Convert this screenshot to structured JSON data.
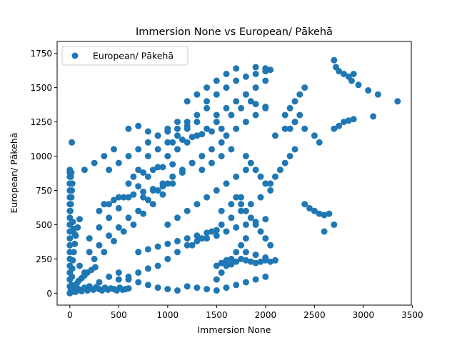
{
  "chart_data": {
    "type": "scatter",
    "title": "Immersion None vs European/ Pākehā",
    "xlabel": "Immersion None",
    "ylabel": "European/ Pākehā",
    "xlim": [
      -130,
      3490
    ],
    "ylim": [
      -87,
      1837
    ],
    "xticks": [
      0,
      500,
      1000,
      1500,
      2000,
      2500,
      3000,
      3500
    ],
    "yticks": [
      0,
      250,
      500,
      750,
      1000,
      1250,
      1500,
      1750
    ],
    "grid": false,
    "legend": {
      "placement": "top-left",
      "entries": [
        "European/ Pākehā"
      ]
    },
    "series": [
      {
        "name": "European/ Pākehā",
        "color": "#1f77b4",
        "marker": "circle",
        "x": [
          0,
          0,
          0,
          0,
          0,
          0,
          0,
          0,
          0,
          0,
          0,
          0,
          0,
          0,
          0,
          0,
          0,
          0,
          0,
          0,
          10,
          15,
          20,
          25,
          30,
          40,
          50,
          60,
          80,
          100,
          20,
          30,
          50,
          70,
          90,
          120,
          150,
          180,
          220,
          260,
          5,
          10,
          15,
          20,
          25,
          30,
          40,
          50,
          10,
          15,
          30,
          60,
          90,
          120,
          150,
          180,
          210,
          240,
          270,
          300,
          330,
          360,
          390,
          420,
          450,
          480,
          510,
          540,
          570,
          600,
          100,
          200,
          300,
          400,
          500,
          600,
          700,
          800,
          900,
          1000,
          150,
          250,
          350,
          450,
          550,
          650,
          750,
          850,
          950,
          1050,
          1150,
          1250,
          1350,
          200,
          300,
          400,
          500,
          600,
          700,
          800,
          900,
          1000,
          1100,
          1200,
          1300,
          1400,
          1500,
          300,
          400,
          500,
          600,
          700,
          800,
          900,
          1000,
          1100,
          1200,
          1300,
          400,
          500,
          600,
          700,
          800,
          900,
          1000,
          1100,
          1200,
          600,
          700,
          800,
          900,
          1000,
          1100,
          1200,
          1300,
          1400,
          750,
          850,
          950,
          1050,
          1150,
          1250,
          1350,
          1450,
          1550,
          1000,
          1100,
          1200,
          1300,
          1400,
          1500,
          1600,
          1700,
          1800,
          1250,
          1350,
          1450,
          1550,
          1650,
          1750,
          1850,
          1950,
          1400,
          1500,
          1600,
          1700,
          1800,
          1900,
          2000,
          1500,
          1600,
          1700,
          1800,
          1900,
          2000,
          1600,
          1700,
          1800,
          1900,
          2000,
          1800,
          1850,
          1900,
          1950,
          2000,
          2050,
          1700,
          1750,
          1800,
          1850,
          1900,
          1950,
          2000,
          2050,
          1500,
          1550,
          1600,
          1650,
          1700,
          1750,
          1800,
          1850,
          1900,
          1950,
          2000,
          2050,
          2050,
          2100,
          2150,
          2200,
          2250,
          2300,
          2100,
          2200,
          2300,
          2400,
          2500,
          2550,
          2400,
          2450,
          2500,
          2550,
          2600,
          2200,
          2250,
          2300,
          2350,
          2400,
          2250,
          2300,
          2350,
          2700,
          2720,
          2750,
          2800,
          2850,
          2880,
          2900,
          2950,
          3050,
          3150,
          3350,
          2700,
          2750,
          2800,
          2850,
          2900,
          3100,
          2650,
          2700,
          2600,
          1200,
          1300,
          1400,
          1500,
          1600,
          1700,
          1800,
          1900,
          2000,
          1500,
          1550,
          1600,
          1650,
          1700,
          1750,
          1800,
          1800,
          1900,
          2000,
          2100,
          500,
          600,
          700,
          800,
          900,
          1000,
          1100,
          1200,
          1300,
          1400,
          1500,
          1600,
          1700,
          1800,
          1900,
          2000,
          700,
          800,
          900,
          1000,
          1100,
          1200,
          1300,
          1400,
          1500,
          200,
          300,
          400,
          500,
          600,
          700,
          800,
          900,
          1000,
          1100,
          350,
          450,
          550,
          650,
          750,
          850,
          950,
          650,
          750,
          850,
          950,
          1050,
          1050,
          1150,
          1250,
          1350,
          1450,
          1550,
          1350,
          1450,
          1550,
          1650,
          1650,
          1750,
          1850,
          1800,
          1900,
          2000,
          20,
          150,
          250,
          350,
          450,
          1200,
          1300,
          1400,
          1500,
          1600,
          1700,
          1900,
          2000,
          2050,
          1550,
          1650,
          1750
        ],
        "y": [
          0,
          50,
          100,
          150,
          200,
          250,
          300,
          350,
          400,
          450,
          500,
          550,
          600,
          650,
          700,
          750,
          800,
          850,
          880,
          900,
          20,
          60,
          120,
          180,
          240,
          300,
          360,
          420,
          480,
          540,
          10,
          30,
          50,
          70,
          90,
          110,
          130,
          150,
          170,
          190,
          600,
          650,
          700,
          750,
          800,
          520,
          470,
          430,
          850,
          880,
          20,
          10,
          30,
          15,
          40,
          20,
          35,
          25,
          45,
          30,
          20,
          40,
          25,
          35,
          30,
          20,
          40,
          25,
          30,
          35,
          200,
          300,
          350,
          420,
          480,
          550,
          600,
          680,
          750,
          800,
          150,
          250,
          300,
          380,
          450,
          500,
          580,
          650,
          720,
          800,
          880,
          950,
          1000,
          400,
          480,
          550,
          620,
          700,
          780,
          850,
          920,
          1000,
          1050,
          1100,
          1150,
          1200,
          1250,
          600,
          650,
          700,
          800,
          900,
          1000,
          1050,
          1100,
          1150,
          1200,
          1250,
          900,
          950,
          1000,
          1050,
          1100,
          1150,
          1180,
          1200,
          1220,
          1200,
          1220,
          1180,
          1150,
          1200,
          1250,
          1250,
          1300,
          1350,
          700,
          750,
          800,
          850,
          900,
          950,
          1000,
          1050,
          1100,
          500,
          550,
          600,
          650,
          700,
          750,
          800,
          850,
          900,
          350,
          400,
          450,
          500,
          550,
          600,
          650,
          700,
          1400,
          1450,
          1500,
          1550,
          1580,
          1600,
          1620,
          1300,
          1350,
          1400,
          1450,
          1380,
          1360,
          1150,
          1200,
          1250,
          1300,
          1350,
          1000,
          950,
          900,
          850,
          800,
          750,
          700,
          650,
          600,
          550,
          500,
          450,
          400,
          350,
          200,
          220,
          240,
          210,
          230,
          250,
          240,
          230,
          220,
          230,
          240,
          230,
          800,
          850,
          900,
          950,
          1000,
          1050,
          1150,
          1200,
          1250,
          1200,
          1150,
          1100,
          650,
          620,
          600,
          580,
          570,
          1300,
          1350,
          1400,
          1450,
          1500,
          1200,
          1250,
          1300,
          1700,
          1650,
          1620,
          1600,
          1580,
          1550,
          1600,
          1520,
          1480,
          1450,
          1400,
          1200,
          1220,
          1250,
          1260,
          1270,
          1290,
          580,
          500,
          450,
          50,
          40,
          30,
          20,
          40,
          60,
          80,
          100,
          120,
          100,
          150,
          200,
          250,
          300,
          350,
          400,
          300,
          280,
          260,
          240,
          100,
          120,
          150,
          180,
          200,
          250,
          300,
          350,
          380,
          400,
          420,
          450,
          480,
          500,
          520,
          540,
          300,
          320,
          340,
          360,
          380,
          400,
          420,
          440,
          460,
          50,
          80,
          120,
          150,
          100,
          80,
          60,
          40,
          30,
          20,
          650,
          680,
          700,
          720,
          740,
          760,
          780,
          850,
          880,
          900,
          920,
          940,
          1100,
          1120,
          1140,
          1160,
          1180,
          1200,
          900,
          950,
          1000,
          1050,
          1300,
          1350,
          1400,
          1450,
          1500,
          1550,
          1100,
          900,
          950,
          1000,
          1050,
          1400,
          1450,
          1500,
          1550,
          1600,
          1640,
          1650,
          1640,
          1630,
          600,
          650,
          700
        ]
      }
    ]
  }
}
